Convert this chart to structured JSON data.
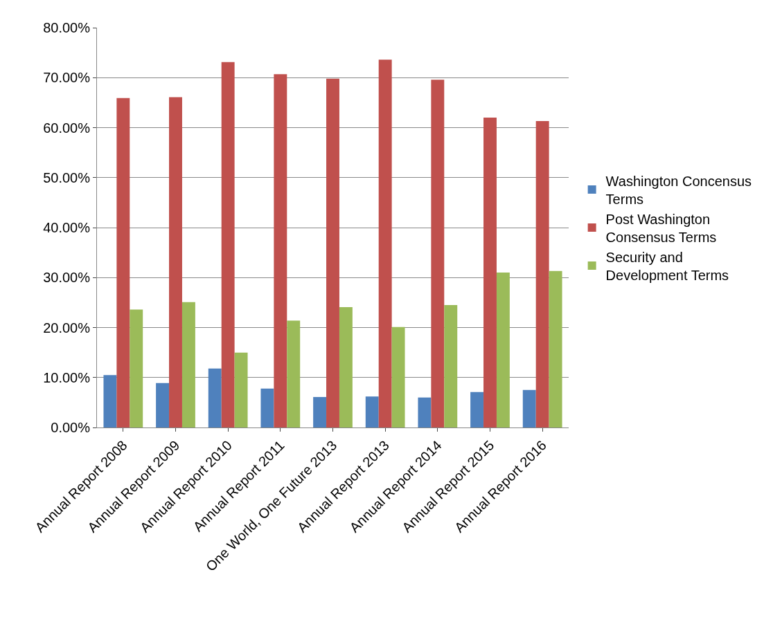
{
  "chart_data": {
    "type": "bar",
    "categories": [
      "Annual Report 2008",
      "Annual Report 2009",
      "Annual Report 2010",
      "Annual Report 2011",
      "One World, One Future 2013",
      "Annual Report 2013",
      "Annual Report 2014",
      "Annual Report 2015",
      "Annual Report 2016"
    ],
    "series": [
      {
        "name": "Washington Concensus Terms",
        "color": "#4f81bd",
        "values": [
          10.5,
          8.9,
          11.8,
          7.8,
          6.1,
          6.2,
          6.0,
          7.1,
          7.5
        ]
      },
      {
        "name": "Post Washington Consensus Terms",
        "color": "#c0504d",
        "values": [
          65.9,
          66.1,
          73.1,
          70.7,
          69.8,
          73.6,
          69.6,
          62.0,
          61.3
        ]
      },
      {
        "name": "Security and Development Terms",
        "color": "#9bbb59",
        "values": [
          23.6,
          25.1,
          15.0,
          21.4,
          24.1,
          20.1,
          24.5,
          31.0,
          31.3
        ]
      }
    ],
    "ylim": [
      0,
      80
    ],
    "yticks": [
      {
        "value": 0,
        "label": "0.00%"
      },
      {
        "value": 10,
        "label": "10.00%"
      },
      {
        "value": 20,
        "label": "20.00%"
      },
      {
        "value": 30,
        "label": "30.00%"
      },
      {
        "value": 40,
        "label": "40.00%"
      },
      {
        "value": 50,
        "label": "50.00%"
      },
      {
        "value": 60,
        "label": "60.00%"
      },
      {
        "value": 70,
        "label": "70.00%"
      },
      {
        "value": 80,
        "label": "80.00%"
      }
    ],
    "grid": "y",
    "legend": "right"
  }
}
